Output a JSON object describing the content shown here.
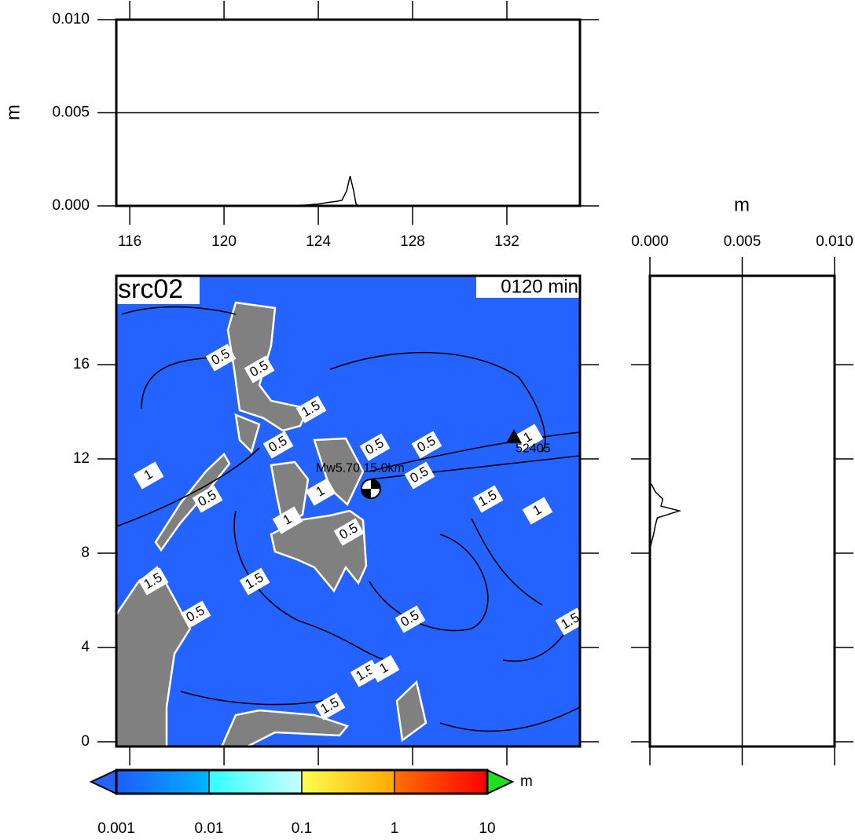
{
  "top_profile": {
    "ylabel": "m",
    "xlim": [
      115.43,
      135.1
    ],
    "ylim": [
      0,
      0.01
    ],
    "yticks": [
      {
        "value": 0,
        "label": "0.000"
      },
      {
        "value": 0.005,
        "label": "0.005"
      },
      {
        "value": 0.01,
        "label": "0.010"
      }
    ],
    "xticks": [
      116,
      120,
      124,
      128,
      132
    ],
    "x": [
      115.43,
      122.5,
      123,
      123.5,
      124,
      124.5,
      124.8,
      125,
      125.2,
      125.35,
      125.5,
      125.6,
      125.7,
      135.1
    ],
    "values": [
      0,
      0,
      2e-05,
      5e-05,
      0.0001,
      0.0002,
      0.00025,
      0.0003,
      0.0008,
      0.0016,
      0.0008,
      0.0001,
      0,
      0
    ],
    "grid": true
  },
  "map": {
    "title": "src02",
    "time_label": "0120 min",
    "xlim": [
      115.43,
      135.1
    ],
    "ylim": [
      -0.2,
      19.77
    ],
    "yticks": [
      0,
      4,
      8,
      12,
      16
    ],
    "sea_color": "#2463ff",
    "station": {
      "label": "52405",
      "lon": 132.3,
      "lat": 12.9
    },
    "source": {
      "label": "Mw5.70  15.0km",
      "lon": 126.23,
      "lat": 10.73
    },
    "contour_labels": [
      {
        "value": 0.5,
        "lon": 119.87,
        "lat": 16.3
      },
      {
        "value": 0.5,
        "lon": 121.5,
        "lat": 15.8
      },
      {
        "value": 1.5,
        "lon": 123.7,
        "lat": 14.1
      },
      {
        "value": 0.5,
        "lon": 122.3,
        "lat": 12.6
      },
      {
        "value": 1,
        "lon": 116.8,
        "lat": 11.3
      },
      {
        "value": 0.5,
        "lon": 119.3,
        "lat": 10.3
      },
      {
        "value": 1,
        "lon": 124.1,
        "lat": 10.6
      },
      {
        "value": 1,
        "lon": 122.7,
        "lat": 9.4
      },
      {
        "value": 0.5,
        "lon": 125.3,
        "lat": 8.9
      },
      {
        "value": 0.5,
        "lon": 126.4,
        "lat": 12.5
      },
      {
        "value": 0.5,
        "lon": 128.6,
        "lat": 12.6
      },
      {
        "value": 0.5,
        "lon": 128.3,
        "lat": 11.3
      },
      {
        "value": 1.5,
        "lon": 131.2,
        "lat": 10.3
      },
      {
        "value": 1,
        "lon": 133.3,
        "lat": 9.8
      },
      {
        "value": 1,
        "lon": 132.9,
        "lat": 12.9
      },
      {
        "value": 1.5,
        "lon": 117.0,
        "lat": 6.8
      },
      {
        "value": 1.5,
        "lon": 121.3,
        "lat": 6.8
      },
      {
        "value": 0.5,
        "lon": 118.8,
        "lat": 5.4
      },
      {
        "value": 0.5,
        "lon": 127.9,
        "lat": 5.2
      },
      {
        "value": 1.5,
        "lon": 134.7,
        "lat": 5.1
      },
      {
        "value": 1.5,
        "lon": 126.0,
        "lat": 2.9
      },
      {
        "value": 1,
        "lon": 126.8,
        "lat": 3.1
      },
      {
        "value": 1.5,
        "lon": 124.5,
        "lat": 1.5
      }
    ]
  },
  "right_profile": {
    "xlabel": "m",
    "xlim": [
      0,
      0.01
    ],
    "xticks": [
      {
        "value": 0,
        "label": "0.000"
      },
      {
        "value": 0.005,
        "label": "0.005"
      },
      {
        "value": 0.01,
        "label": "0.010"
      }
    ],
    "lat": [
      8.2,
      8.5,
      8.8,
      9.2,
      9.5,
      9.8,
      10.0,
      10.3,
      10.6,
      10.9,
      11.0
    ],
    "values": [
      0,
      0.0001,
      0.0002,
      0.0003,
      0.0004,
      0.0016,
      0.0006,
      0.0007,
      0.0003,
      0.0001,
      0
    ],
    "grid": true
  },
  "colorbar": {
    "unit": "m",
    "log": true,
    "lim": [
      0.001,
      10
    ],
    "ticks": [
      {
        "value": 0.001,
        "label": "0.001"
      },
      {
        "value": 0.01,
        "label": "0.01"
      },
      {
        "value": 0.1,
        "label": "0.1"
      },
      {
        "value": 1,
        "label": "1"
      },
      {
        "value": 10,
        "label": "10"
      }
    ],
    "segment_colors": [
      [
        "#1e5cff",
        "#00b4ff"
      ],
      [
        "#30ffff",
        "#c8ffff"
      ],
      [
        "#ffff50",
        "#ffa800"
      ],
      [
        "#ff7000",
        "#ff0000"
      ]
    ],
    "under_color": "#2463ff",
    "over_color": "#1ee01e"
  }
}
